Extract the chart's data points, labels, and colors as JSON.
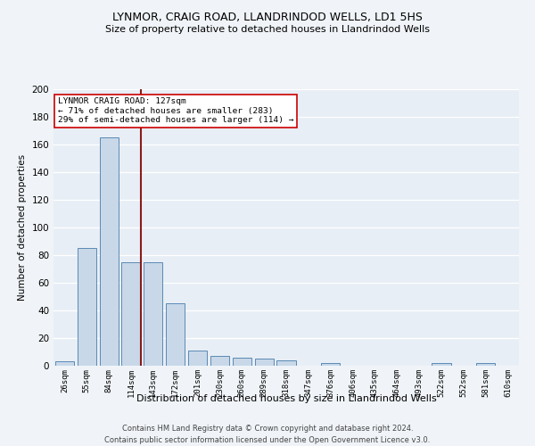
{
  "title1": "LYNMOR, CRAIG ROAD, LLANDRINDOD WELLS, LD1 5HS",
  "title2": "Size of property relative to detached houses in Llandrindod Wells",
  "xlabel": "Distribution of detached houses by size in Llandrindod Wells",
  "ylabel": "Number of detached properties",
  "footer1": "Contains HM Land Registry data © Crown copyright and database right 2024.",
  "footer2": "Contains public sector information licensed under the Open Government Licence v3.0.",
  "annotation_line1": "LYNMOR CRAIG ROAD: 127sqm",
  "annotation_line2": "← 71% of detached houses are smaller (283)",
  "annotation_line3": "29% of semi-detached houses are larger (114) →",
  "bar_labels": [
    "26sqm",
    "55sqm",
    "84sqm",
    "114sqm",
    "143sqm",
    "172sqm",
    "201sqm",
    "230sqm",
    "260sqm",
    "289sqm",
    "318sqm",
    "347sqm",
    "376sqm",
    "406sqm",
    "435sqm",
    "464sqm",
    "493sqm",
    "522sqm",
    "552sqm",
    "581sqm",
    "610sqm"
  ],
  "bar_values": [
    3,
    85,
    165,
    75,
    75,
    45,
    11,
    7,
    6,
    5,
    4,
    0,
    2,
    0,
    0,
    0,
    0,
    2,
    0,
    2,
    0
  ],
  "bar_color": "#c8d8e8",
  "bar_edge_color": "#5a8ab5",
  "bg_color": "#e8eef5",
  "grid_color": "#ffffff",
  "vline_color": "#8b1a1a",
  "annotation_box_color": "#ffffff",
  "annotation_box_edge": "#cc0000",
  "ylim": [
    0,
    200
  ],
  "yticks": [
    0,
    20,
    40,
    60,
    80,
    100,
    120,
    140,
    160,
    180,
    200
  ],
  "fig_bg": "#f0f4f8"
}
